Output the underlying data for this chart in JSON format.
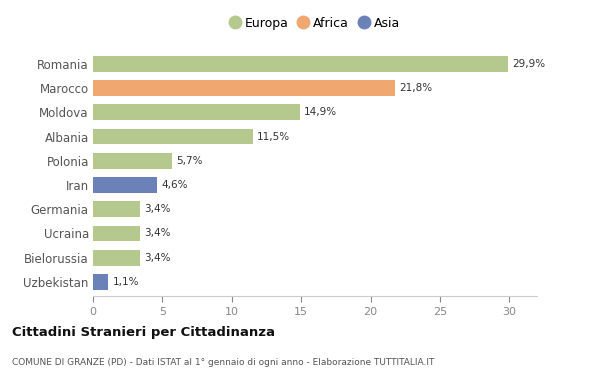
{
  "countries": [
    "Romania",
    "Marocco",
    "Moldova",
    "Albania",
    "Polonia",
    "Iran",
    "Germania",
    "Ucraina",
    "Bielorussia",
    "Uzbekistan"
  ],
  "values": [
    29.9,
    21.8,
    14.9,
    11.5,
    5.7,
    4.6,
    3.4,
    3.4,
    3.4,
    1.1
  ],
  "labels": [
    "29,9%",
    "21,8%",
    "14,9%",
    "11,5%",
    "5,7%",
    "4,6%",
    "3,4%",
    "3,4%",
    "3,4%",
    "1,1%"
  ],
  "continents": [
    "Europa",
    "Africa",
    "Europa",
    "Europa",
    "Europa",
    "Asia",
    "Europa",
    "Europa",
    "Europa",
    "Asia"
  ],
  "colors": {
    "Europa": "#b5c98e",
    "Africa": "#f0a870",
    "Asia": "#6b82b8"
  },
  "legend_items": [
    "Europa",
    "Africa",
    "Asia"
  ],
  "legend_colors": [
    "#b5c98e",
    "#f0a870",
    "#6b82b8"
  ],
  "xlim": [
    0,
    32
  ],
  "xticks": [
    0,
    5,
    10,
    15,
    20,
    25,
    30
  ],
  "title": "Cittadini Stranieri per Cittadinanza",
  "subtitle": "COMUNE DI GRANZE (PD) - Dati ISTAT al 1° gennaio di ogni anno - Elaborazione TUTTITALIA.IT",
  "background_color": "#ffffff",
  "bar_height": 0.65,
  "label_fontsize": 7.5,
  "ytick_fontsize": 8.5,
  "xtick_fontsize": 8
}
